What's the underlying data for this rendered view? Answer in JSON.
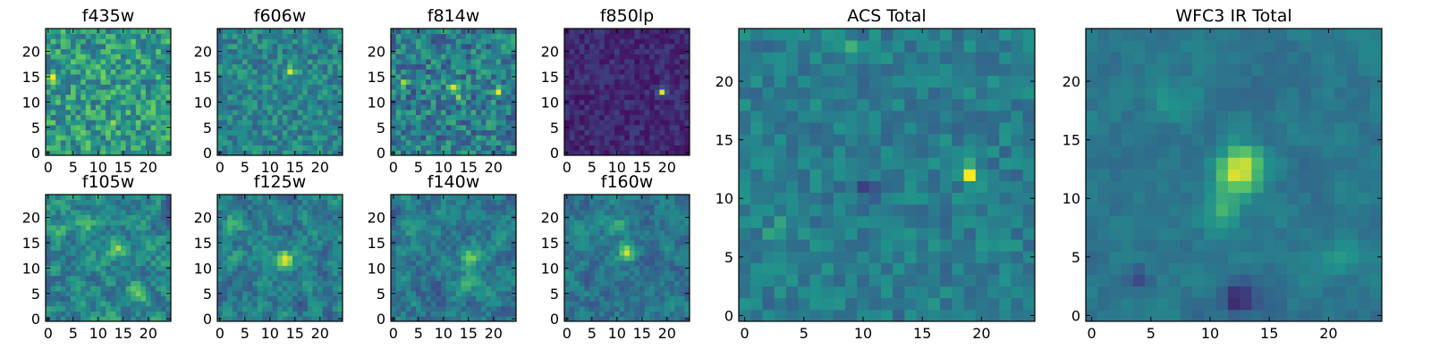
{
  "figure": {
    "colormap": "viridis",
    "colormap_stops": [
      "#440154",
      "#3b528b",
      "#21918c",
      "#5ec962",
      "#fde725"
    ],
    "axis_color": "#000000",
    "background": "#ffffff"
  },
  "chart_data": [
    {
      "type": "heatmap",
      "title": "f435w",
      "grid_size": 25,
      "xlim": [
        0,
        24
      ],
      "ylim": [
        0,
        24
      ],
      "xticks": [
        0,
        5,
        10,
        15,
        20
      ],
      "yticks": [
        0,
        5,
        10,
        15,
        20
      ],
      "seed": 11,
      "base": 0.55,
      "noise": 0.22,
      "smooth": 0,
      "floor": 0.25,
      "blobs": [
        {
          "x": 11,
          "y": 16,
          "amp": 0.35,
          "sigma": 0.6
        },
        {
          "x": 1,
          "y": 15,
          "amp": 0.35,
          "sigma": 0.6
        },
        {
          "x": 13,
          "y": 6,
          "amp": 0.2,
          "sigma": 0.7
        }
      ]
    },
    {
      "type": "heatmap",
      "title": "f606w",
      "grid_size": 25,
      "xlim": [
        0,
        24
      ],
      "ylim": [
        0,
        24
      ],
      "xticks": [
        0,
        5,
        10,
        15,
        20
      ],
      "yticks": [
        0,
        5,
        10,
        15,
        20
      ],
      "seed": 23,
      "base": 0.45,
      "noise": 0.15,
      "smooth": 0,
      "floor": 0.2,
      "blobs": [
        {
          "x": 14,
          "y": 16,
          "amp": 0.45,
          "sigma": 0.6
        }
      ]
    },
    {
      "type": "heatmap",
      "title": "f814w",
      "grid_size": 25,
      "xlim": [
        0,
        24
      ],
      "ylim": [
        0,
        24
      ],
      "xticks": [
        0,
        5,
        10,
        15,
        20
      ],
      "yticks": [
        0,
        5,
        10,
        15,
        20
      ],
      "seed": 37,
      "base": 0.42,
      "noise": 0.2,
      "smooth": 0,
      "floor": 0.12,
      "blobs": [
        {
          "x": 12,
          "y": 13,
          "amp": 0.45,
          "sigma": 0.6
        },
        {
          "x": 21,
          "y": 12,
          "amp": 0.4,
          "sigma": 0.6
        },
        {
          "x": 13,
          "y": 11,
          "amp": 0.35,
          "sigma": 0.6
        },
        {
          "x": 2,
          "y": 14,
          "amp": 0.3,
          "sigma": 0.6
        }
      ]
    },
    {
      "type": "heatmap",
      "title": "f850lp",
      "grid_size": 25,
      "xlim": [
        0,
        24
      ],
      "ylim": [
        0,
        24
      ],
      "xticks": [
        0,
        5,
        10,
        15,
        20
      ],
      "yticks": [
        0,
        5,
        10,
        15,
        20
      ],
      "seed": 41,
      "base": 0.12,
      "noise": 0.08,
      "smooth": 0,
      "floor": 0.0,
      "blobs": [
        {
          "x": 19,
          "y": 12,
          "amp": 0.85,
          "sigma": 0.5
        }
      ]
    },
    {
      "type": "heatmap",
      "title": "f105w",
      "grid_size": 25,
      "xlim": [
        0,
        24
      ],
      "ylim": [
        0,
        24
      ],
      "xticks": [
        0,
        5,
        10,
        15,
        20
      ],
      "yticks": [
        0,
        5,
        10,
        15,
        20
      ],
      "seed": 53,
      "base": 0.45,
      "noise": 0.28,
      "smooth": 1,
      "floor": 0.1,
      "blobs": [
        {
          "x": 7,
          "y": 19,
          "amp": 0.35,
          "sigma": 1.2
        },
        {
          "x": 14,
          "y": 14,
          "amp": 0.3,
          "sigma": 1.2
        },
        {
          "x": 18,
          "y": 5,
          "amp": 0.35,
          "sigma": 1.4
        },
        {
          "x": 2,
          "y": 17,
          "amp": 0.25,
          "sigma": 1.2
        }
      ]
    },
    {
      "type": "heatmap",
      "title": "f125w",
      "grid_size": 25,
      "xlim": [
        0,
        24
      ],
      "ylim": [
        0,
        24
      ],
      "xticks": [
        0,
        5,
        10,
        15,
        20
      ],
      "yticks": [
        0,
        5,
        10,
        15,
        20
      ],
      "seed": 67,
      "base": 0.42,
      "noise": 0.26,
      "smooth": 1,
      "floor": 0.1,
      "blobs": [
        {
          "x": 13,
          "y": 12,
          "amp": 0.45,
          "sigma": 1.2
        },
        {
          "x": 3,
          "y": 19,
          "amp": 0.2,
          "sigma": 1.3
        }
      ]
    },
    {
      "type": "heatmap",
      "title": "f140w",
      "grid_size": 25,
      "xlim": [
        0,
        24
      ],
      "ylim": [
        0,
        24
      ],
      "xticks": [
        0,
        5,
        10,
        15,
        20
      ],
      "yticks": [
        0,
        5,
        10,
        15,
        20
      ],
      "seed": 79,
      "base": 0.4,
      "noise": 0.24,
      "smooth": 1,
      "floor": 0.1,
      "blobs": [
        {
          "x": 15,
          "y": 12,
          "amp": 0.45,
          "sigma": 1.2
        },
        {
          "x": 14,
          "y": 7,
          "amp": 0.3,
          "sigma": 1.2
        },
        {
          "x": 4,
          "y": 19,
          "amp": 0.25,
          "sigma": 1.3
        }
      ]
    },
    {
      "type": "heatmap",
      "title": "f160w",
      "grid_size": 25,
      "xlim": [
        0,
        24
      ],
      "ylim": [
        0,
        24
      ],
      "xticks": [
        0,
        5,
        10,
        15,
        20
      ],
      "yticks": [
        0,
        5,
        10,
        15,
        20
      ],
      "seed": 83,
      "base": 0.38,
      "noise": 0.22,
      "smooth": 1,
      "floor": 0.1,
      "blobs": [
        {
          "x": 12,
          "y": 13,
          "amp": 0.45,
          "sigma": 1.2
        },
        {
          "x": 10,
          "y": 18,
          "amp": 0.25,
          "sigma": 1.4
        }
      ]
    },
    {
      "type": "heatmap",
      "title": "ACS Total",
      "grid_size": 25,
      "xlim": [
        0,
        24
      ],
      "ylim": [
        0,
        24
      ],
      "xticks": [
        0,
        5,
        10,
        15,
        20
      ],
      "yticks": [
        0,
        5,
        10,
        15,
        20
      ],
      "seed": 97,
      "base": 0.42,
      "noise": 0.1,
      "smooth": 0,
      "floor": 0.15,
      "blobs": [
        {
          "x": 19,
          "y": 12,
          "amp": 0.55,
          "sigma": 0.55
        },
        {
          "x": 10,
          "y": 11,
          "amp": -0.3,
          "sigma": 0.7
        },
        {
          "x": 9,
          "y": 23,
          "amp": 0.2,
          "sigma": 0.6
        },
        {
          "x": 3,
          "y": 7,
          "amp": 0.12,
          "sigma": 0.9
        }
      ]
    },
    {
      "type": "heatmap",
      "title": "WFC3 IR Total",
      "grid_size": 25,
      "xlim": [
        0,
        24
      ],
      "ylim": [
        0,
        24
      ],
      "xticks": [
        0,
        5,
        10,
        15,
        20
      ],
      "yticks": [
        0,
        5,
        10,
        15,
        20
      ],
      "seed": 101,
      "base": 0.4,
      "noise": 0.1,
      "smooth": 1,
      "floor": 0.05,
      "blobs": [
        {
          "x": 12.5,
          "y": 12.5,
          "amp": 0.55,
          "sigma": 1.3
        },
        {
          "x": 11,
          "y": 9,
          "amp": 0.25,
          "sigma": 1.0
        },
        {
          "x": 12.5,
          "y": 1.5,
          "amp": -0.3,
          "sigma": 1.0
        },
        {
          "x": 4,
          "y": 3,
          "amp": -0.2,
          "sigma": 0.8
        },
        {
          "x": 7,
          "y": 18,
          "amp": 0.15,
          "sigma": 1.2
        },
        {
          "x": 21,
          "y": 5,
          "amp": 0.15,
          "sigma": 1.1
        }
      ]
    }
  ]
}
